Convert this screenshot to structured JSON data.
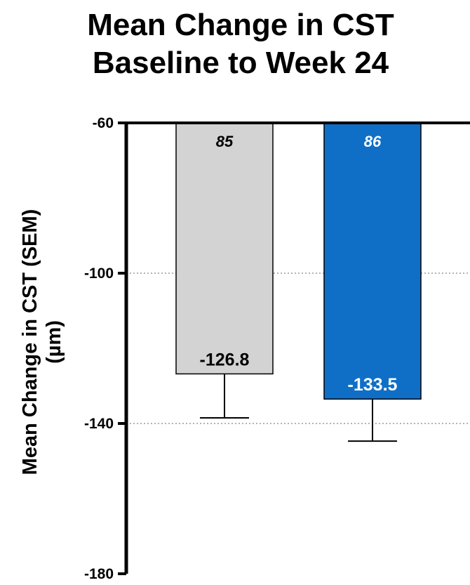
{
  "chart_data": {
    "type": "bar",
    "title": [
      "Mean Change in CST",
      "Baseline to Week 24"
    ],
    "ylabel": [
      "Mean Change in CST (SEM)",
      "(µm)"
    ],
    "xlabel": "",
    "ylim": [
      -180,
      -60
    ],
    "yticks": [
      -60,
      -100,
      -140,
      -180
    ],
    "gridlines": [
      -100,
      -140
    ],
    "grid": "dotted horizontal",
    "bars": [
      {
        "n": "85",
        "value": -126.8,
        "value_label": "-126.8",
        "error_low": -138.5,
        "color": "#d3d3d3",
        "n_color": "#000000",
        "value_color": "#000000"
      },
      {
        "n": "86",
        "value": -133.5,
        "value_label": "-133.5",
        "error_low": -144.7,
        "color": "#0f6fc6",
        "n_color": "#ffffff",
        "value_color": "#ffffff"
      }
    ]
  }
}
